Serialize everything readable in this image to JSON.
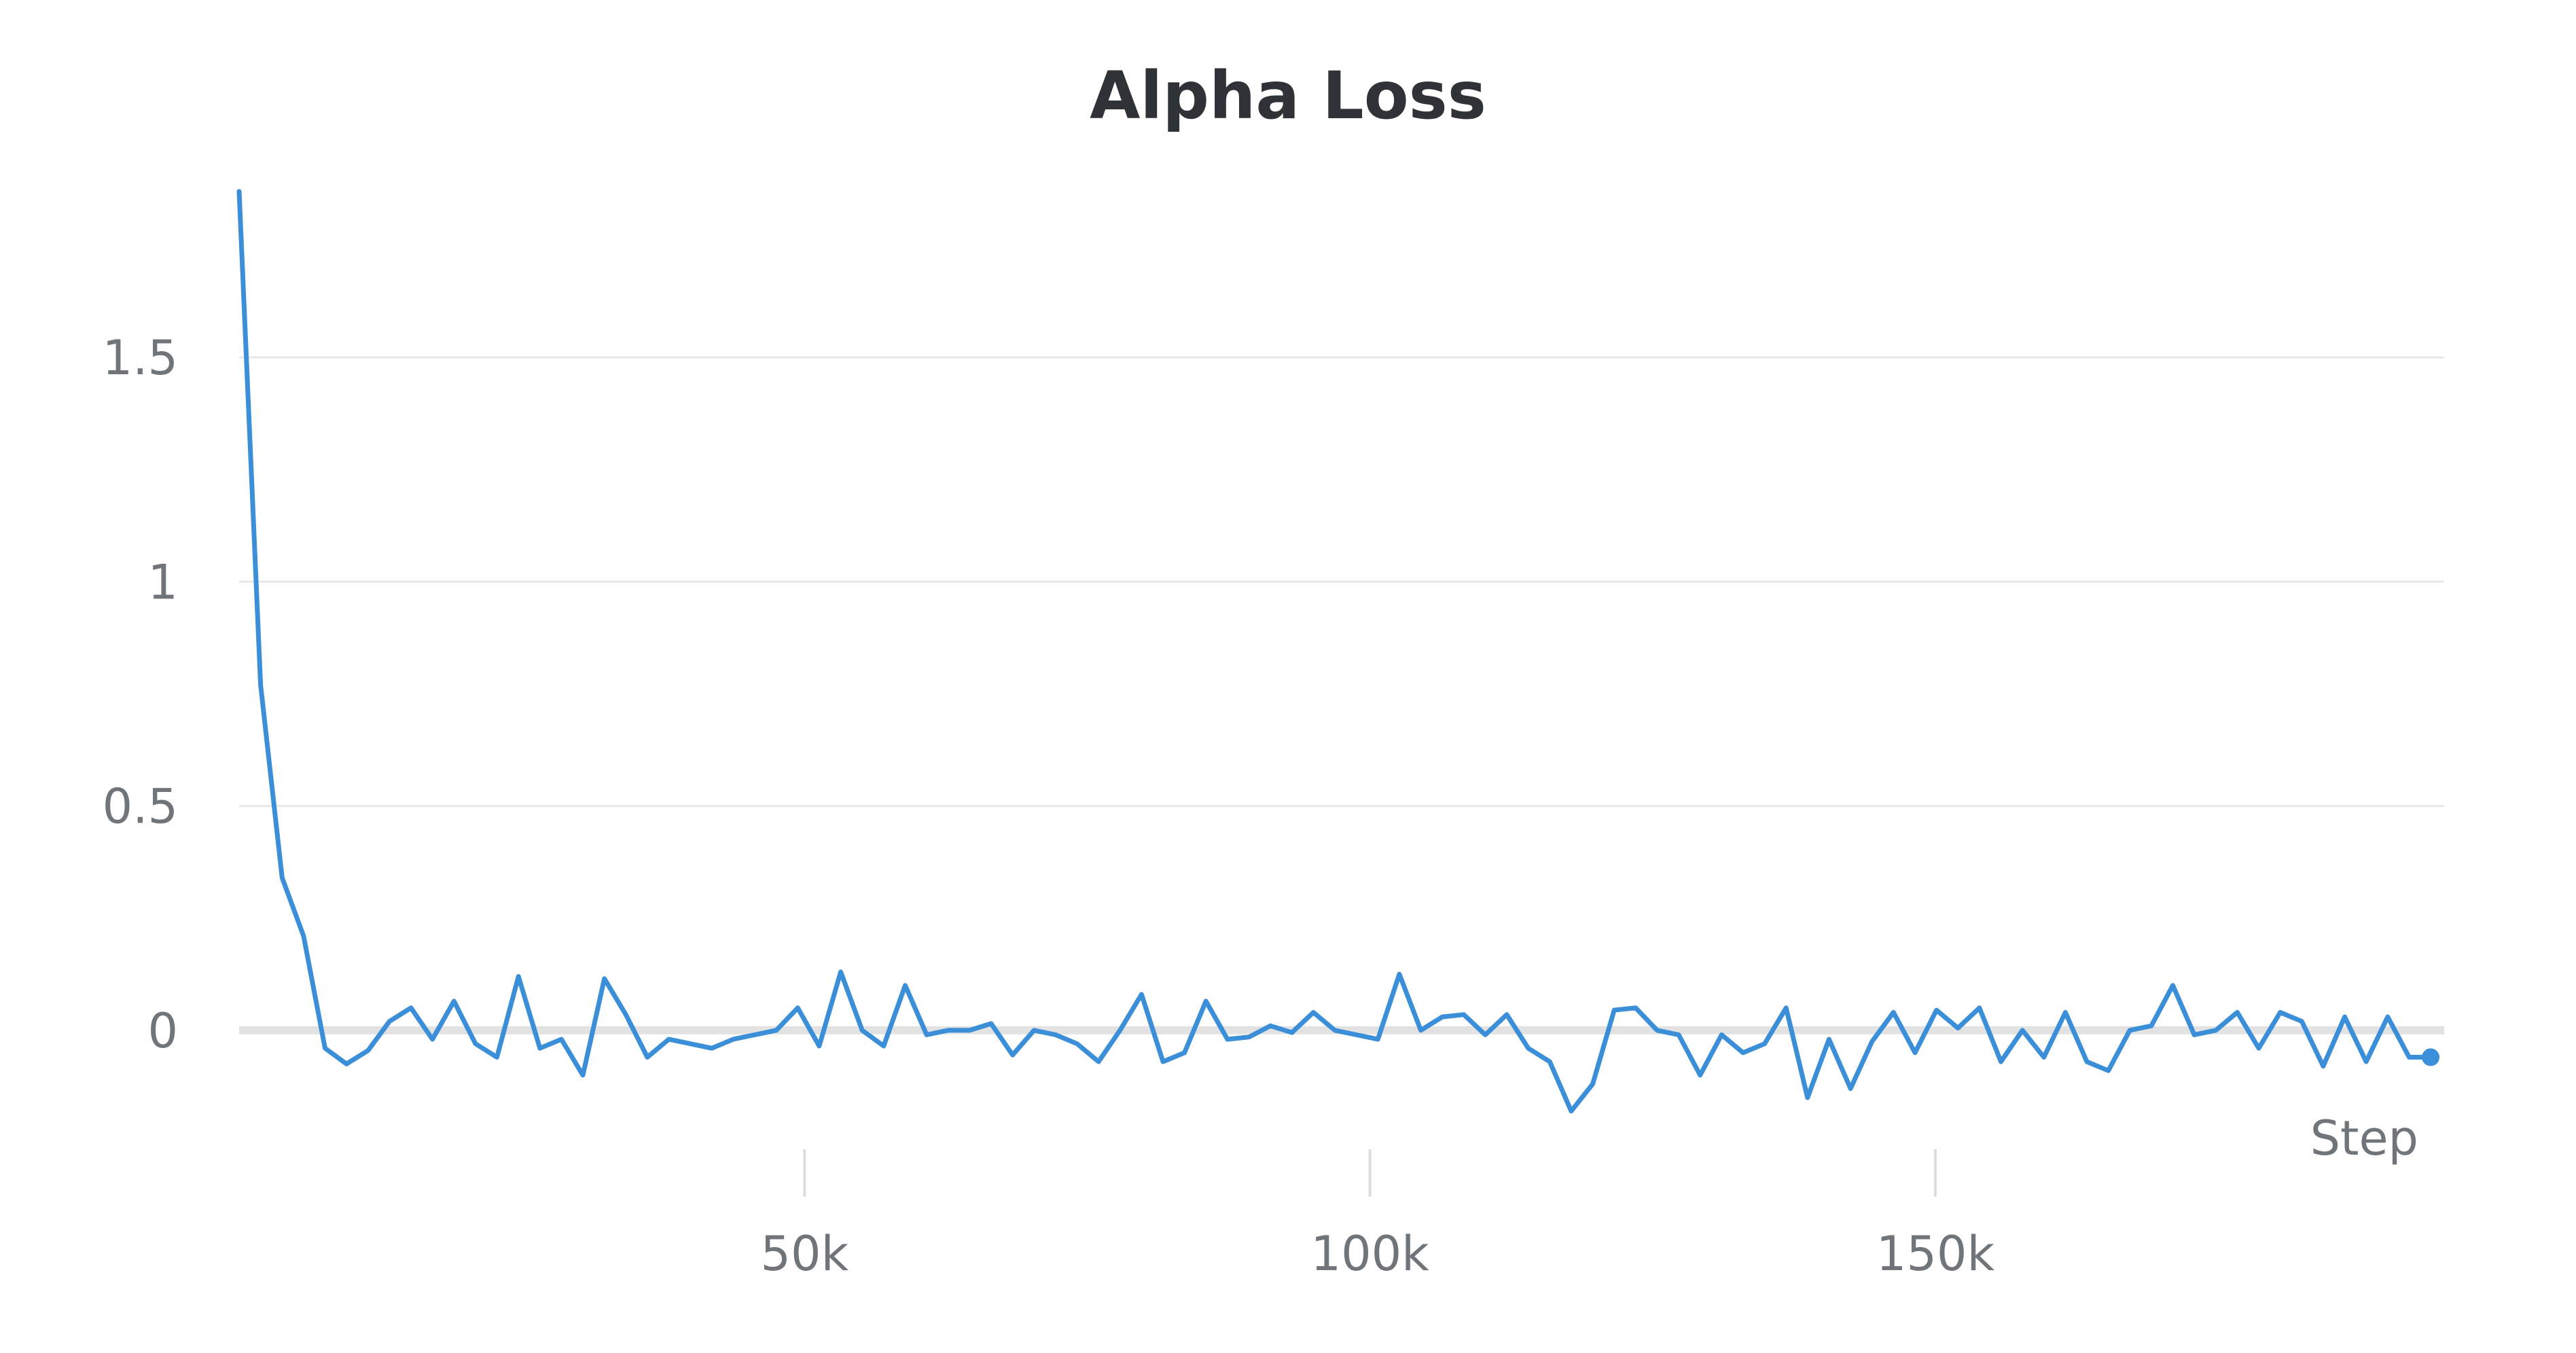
{
  "chart_data": {
    "type": "line",
    "title": "Alpha Loss",
    "xlabel": "Step",
    "ylabel": "",
    "xlim": [
      0,
      195000
    ],
    "ylim": [
      -0.25,
      1.9
    ],
    "grid": true,
    "legend": "none",
    "x_ticks": [
      {
        "value": 50000,
        "label": "50k"
      },
      {
        "value": 100000,
        "label": "100k"
      },
      {
        "value": 150000,
        "label": "150k"
      }
    ],
    "y_ticks": [
      {
        "value": 0,
        "label": "0"
      },
      {
        "value": 0.5,
        "label": "0.5"
      },
      {
        "value": 1,
        "label": "1"
      },
      {
        "value": 1.5,
        "label": "1.5"
      }
    ],
    "series": [
      {
        "color": "#3b8fd9",
        "x": [
          0,
          1900,
          3800,
          5700,
          7600,
          9500,
          11400,
          13300,
          15200,
          17100,
          19000,
          20900,
          22800,
          24700,
          26600,
          28500,
          30400,
          32300,
          34200,
          36100,
          38000,
          39900,
          41800,
          43700,
          45600,
          47500,
          49400,
          51300,
          53200,
          55100,
          57000,
          58900,
          60800,
          62700,
          64600,
          66500,
          68400,
          70300,
          72200,
          74100,
          76000,
          77900,
          79800,
          81700,
          83600,
          85500,
          87400,
          89300,
          91200,
          93100,
          95000,
          96900,
          98800,
          100700,
          102600,
          104500,
          106400,
          108300,
          110200,
          112100,
          114000,
          115900,
          117800,
          119700,
          121600,
          123500,
          125400,
          127300,
          129200,
          131100,
          133000,
          134900,
          136800,
          138700,
          140600,
          142500,
          144400,
          146300,
          148200,
          150100,
          152000,
          153900,
          155800,
          157700,
          159600,
          161500,
          163400,
          165300,
          167200,
          169100,
          171000,
          172900,
          174800,
          176700,
          178600,
          180500,
          182400,
          184300,
          186200,
          188100,
          190000,
          191900,
          193800
        ],
        "y": [
          1.87,
          0.77,
          0.34,
          0.21,
          -0.04,
          -0.075,
          -0.045,
          0.02,
          0.05,
          -0.02,
          0.065,
          -0.03,
          -0.06,
          0.12,
          -0.04,
          -0.02,
          -0.1,
          0.115,
          0.035,
          -0.06,
          -0.02,
          -0.03,
          -0.04,
          -0.02,
          -0.01,
          0.0,
          0.05,
          -0.035,
          0.13,
          0.0,
          -0.035,
          0.1,
          -0.01,
          0.0,
          0.0,
          0.015,
          -0.055,
          0.0,
          -0.01,
          -0.03,
          -0.07,
          0.0,
          0.08,
          -0.07,
          -0.05,
          0.065,
          -0.02,
          -0.015,
          0.01,
          -0.005,
          0.04,
          0.0,
          -0.01,
          -0.02,
          0.125,
          0.0,
          0.03,
          0.035,
          -0.01,
          0.035,
          -0.04,
          -0.07,
          -0.18,
          -0.12,
          0.045,
          0.05,
          0.0,
          -0.01,
          -0.1,
          -0.01,
          -0.05,
          -0.03,
          0.05,
          -0.15,
          -0.02,
          -0.13,
          -0.025,
          0.04,
          -0.05,
          0.045,
          0.005,
          0.05,
          -0.07,
          0.0,
          -0.06,
          0.04,
          -0.07,
          -0.09,
          0.0,
          0.01,
          0.1,
          -0.01,
          0.0,
          0.04,
          -0.04,
          0.04,
          0.02,
          -0.08,
          0.03,
          -0.07,
          0.03,
          -0.06,
          -0.06
        ]
      }
    ]
  }
}
